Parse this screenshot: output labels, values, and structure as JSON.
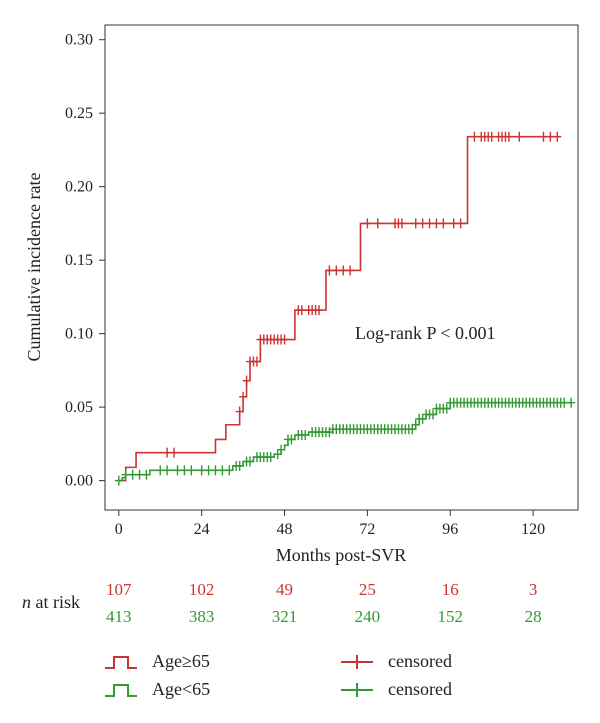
{
  "chart_data": {
    "type": "line",
    "subtype": "step",
    "ylabel": "Cumulative incidence rate",
    "xlabel": "Months post-SVR",
    "annotation": "Log-rank P < 0.001",
    "xlim": [
      -4,
      133
    ],
    "ylim": [
      -0.02,
      0.31
    ],
    "xticks": [
      0,
      24,
      48,
      72,
      96,
      120
    ],
    "yticks": [
      0.0,
      0.05,
      0.1,
      0.15,
      0.2,
      0.25,
      0.3
    ],
    "ytick_labels": [
      "0.00",
      "0.05",
      "0.10",
      "0.15",
      "0.20",
      "0.25",
      "0.30"
    ],
    "grid": false,
    "series": [
      {
        "name": "Age≥65",
        "color": "#cc3333",
        "steps": [
          [
            0,
            0
          ],
          [
            2,
            0.009
          ],
          [
            5,
            0.019
          ],
          [
            28,
            0.028
          ],
          [
            31,
            0.038
          ],
          [
            35,
            0.047
          ],
          [
            36,
            0.057
          ],
          [
            37,
            0.068
          ],
          [
            38,
            0.081
          ],
          [
            41,
            0.096
          ],
          [
            51,
            0.116
          ],
          [
            60,
            0.143
          ],
          [
            70,
            0.175
          ],
          [
            101,
            0.234
          ],
          [
            128,
            0.234
          ]
        ],
        "censored": [
          14,
          16,
          35,
          36,
          37,
          38,
          39,
          40,
          41,
          42,
          43,
          44,
          45,
          46,
          47,
          48,
          52,
          53,
          55,
          56,
          57,
          58,
          61,
          63,
          65,
          67,
          72,
          75,
          80,
          81,
          82,
          86,
          88,
          90,
          92,
          94,
          97,
          99,
          103,
          105,
          106,
          107,
          108,
          110,
          111,
          112,
          113,
          116,
          123,
          125,
          127
        ]
      },
      {
        "name": "Age<65",
        "color": "#339933",
        "steps": [
          [
            0,
            0
          ],
          [
            1,
            0.002
          ],
          [
            2,
            0.004
          ],
          [
            9,
            0.007
          ],
          [
            33,
            0.01
          ],
          [
            36,
            0.013
          ],
          [
            39,
            0.016
          ],
          [
            45,
            0.018
          ],
          [
            47,
            0.021
          ],
          [
            48,
            0.024
          ],
          [
            49,
            0.028
          ],
          [
            51,
            0.031
          ],
          [
            55,
            0.033
          ],
          [
            62,
            0.035
          ],
          [
            86,
            0.038
          ],
          [
            87,
            0.042
          ],
          [
            89,
            0.045
          ],
          [
            92,
            0.049
          ],
          [
            96,
            0.053
          ],
          [
            131,
            0.053
          ]
        ],
        "censored": [
          0,
          2,
          4,
          6,
          8,
          12,
          14,
          17,
          19,
          21,
          24,
          26,
          28,
          30,
          32,
          34,
          35,
          37,
          38,
          40,
          41,
          42,
          43,
          44,
          46,
          47,
          49,
          50,
          52,
          53,
          54,
          56,
          57,
          58,
          59,
          60,
          61,
          62,
          63,
          64,
          65,
          66,
          67,
          68,
          69,
          70,
          71,
          72,
          73,
          74,
          75,
          76,
          77,
          78,
          79,
          80,
          81,
          82,
          83,
          84,
          85,
          86,
          87,
          88,
          89,
          90,
          91,
          92,
          93,
          94,
          95,
          96,
          97,
          98,
          99,
          100,
          101,
          102,
          103,
          104,
          105,
          106,
          107,
          108,
          109,
          110,
          111,
          112,
          113,
          114,
          115,
          116,
          117,
          118,
          119,
          120,
          121,
          122,
          123,
          124,
          125,
          126,
          127,
          128,
          129,
          131
        ]
      }
    ],
    "legend": {
      "placement": "bottom",
      "items": [
        {
          "label": "Age≥65",
          "kind": "line",
          "color": "#cc3333"
        },
        {
          "label": "Age<65",
          "kind": "line",
          "color": "#339933"
        },
        {
          "label": "censored",
          "kind": "censor",
          "color": "#cc3333"
        },
        {
          "label": "censored",
          "kind": "censor",
          "color": "#339933"
        }
      ]
    },
    "risk_table": {
      "title_italic": "n",
      "title_rest": " at risk",
      "times": [
        0,
        24,
        48,
        72,
        96,
        120
      ],
      "rows": [
        {
          "group": "Age≥65",
          "color": "#cc3333",
          "values": [
            "107",
            "102",
            "49",
            "25",
            "16",
            "3"
          ]
        },
        {
          "group": "Age<65",
          "color": "#339933",
          "values": [
            "413",
            "383",
            "321",
            "240",
            "152",
            "28"
          ]
        }
      ]
    }
  }
}
